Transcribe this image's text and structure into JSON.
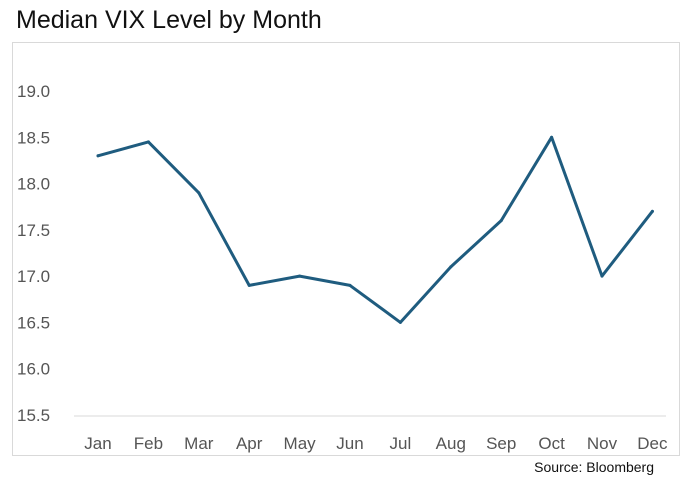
{
  "chart_data": {
    "type": "line",
    "title": "Median VIX Level by Month",
    "xlabel": "",
    "ylabel": "",
    "categories": [
      "Jan",
      "Feb",
      "Mar",
      "Apr",
      "May",
      "Jun",
      "Jul",
      "Aug",
      "Sep",
      "Oct",
      "Nov",
      "Dec"
    ],
    "series": [
      {
        "values": [
          18.3,
          18.45,
          17.9,
          16.9,
          17.0,
          16.9,
          16.5,
          17.1,
          17.6,
          18.5,
          17.0,
          17.7
        ],
        "color": "#1f5c7f"
      }
    ],
    "ylim": [
      15.5,
      19.0
    ],
    "yticks": [
      "15.5",
      "16.0",
      "16.5",
      "17.0",
      "17.5",
      "18.0",
      "18.5",
      "19.0"
    ],
    "grid": false,
    "legend": "none",
    "axis_color": "#d9d9d9",
    "source": "Source: Bloomberg"
  }
}
